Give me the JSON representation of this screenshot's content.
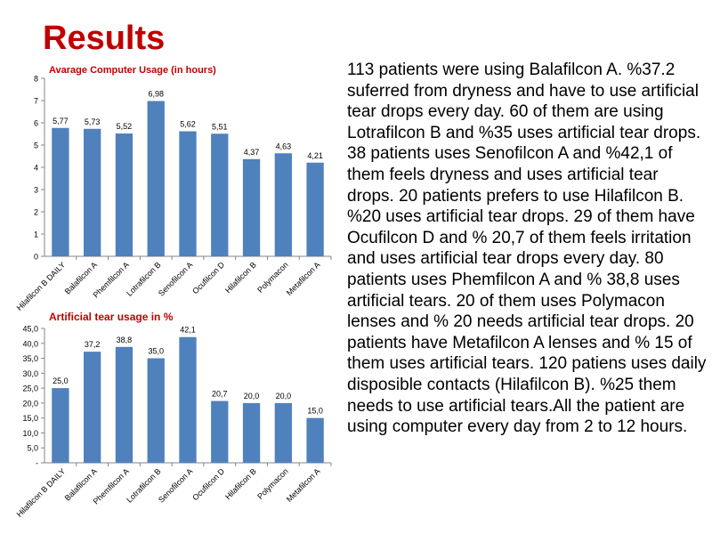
{
  "slide": {
    "title": "Results",
    "paragraph": "113 patients were using Balafilcon A. %37.2 suferred from dryness and have to use artificial tear drops every day. 60 of them are using Lotrafilcon B and %35 uses artificial tear drops. 38 patients uses Senofilcon A and %42,1 of them feels dryness and uses artificial tear drops. 20 patients prefers to use Hilafilcon B. %20 uses artificial tear drops. 29 of them have Ocufilcon D and % 20,7 of them feels irritation and uses artificial tear drops every day. 80 patients uses Phemfilcon A and % 38,8 uses artificial tears. 20 of them uses Polymacon lenses and % 20 needs artificial tear drops. 20 patients have Metafilcon A lenses and % 15 of them uses artificial tears. 120 patiens uses daily disposible contacts (Hilafilcon B). %25 them needs to use artificial tears.All the patient are using computer every day from 2 to 12 hours."
  },
  "colors": {
    "bar": "#4f81bd",
    "title": "#c00000",
    "chart_title": "#c00000"
  },
  "chart_data": [
    {
      "type": "bar",
      "title": "Avarage Computer Usage (in hours)",
      "categories": [
        "Hilafilcon B DAILY",
        "Balafilcon A",
        "Phemfilcon A",
        "Lotrafilcon B",
        "Senofilcon A",
        "Ocufilcon D",
        "Hilafilcon B",
        "Polymacon",
        "Metafilcon  A"
      ],
      "values": [
        5.77,
        5.73,
        5.52,
        6.98,
        5.62,
        5.51,
        4.37,
        4.63,
        4.21
      ],
      "data_labels": [
        "5,77",
        "5,73",
        "5,52",
        "6,98",
        "5,62",
        "5,51",
        "4,37",
        "4,63",
        "4,21"
      ],
      "yticks": [
        "0",
        "1",
        "2",
        "3",
        "4",
        "5",
        "6",
        "7",
        "8"
      ],
      "ylim": [
        0,
        8
      ],
      "xlabel": "",
      "ylabel": "",
      "grid": false,
      "legend": "none"
    },
    {
      "type": "bar",
      "title": "Artificial tear usage in %",
      "categories": [
        "Hilafilcon B DAILY",
        "Balafilcon A",
        "Phemfilcon A",
        "Lotrafilcon B",
        "Senofilcon A",
        "Ocufilcon D",
        "Hilafilcon B",
        "Polymacon",
        "Metafilcon  A"
      ],
      "values": [
        25.0,
        37.2,
        38.8,
        35.0,
        42.1,
        20.7,
        20.0,
        20.0,
        15.0
      ],
      "data_labels": [
        "25,0",
        "37,2",
        "38,8",
        "35,0",
        "42,1",
        "20,7",
        "20,0",
        "20,0",
        "15,0"
      ],
      "yticks": [
        "-",
        "5,0",
        "10,0",
        "15,0",
        "20,0",
        "25,0",
        "30,0",
        "35,0",
        "40,0",
        "45,0"
      ],
      "ylim": [
        0,
        45
      ],
      "xlabel": "",
      "ylabel": "",
      "grid": false,
      "legend": "none"
    }
  ]
}
